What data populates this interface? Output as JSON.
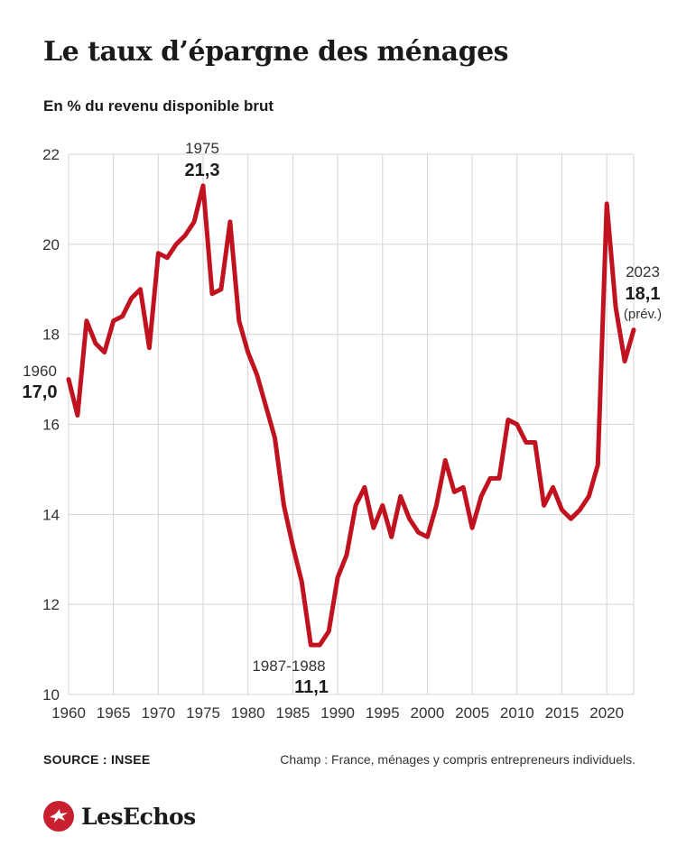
{
  "header": {
    "title": "Le taux d’épargne des ménages",
    "subtitle": "En % du revenu disponible brut"
  },
  "footer": {
    "source": "SOURCE : INSEE",
    "note": "Champ : France, ménages y compris entrepreneurs individuels.",
    "logo_text": "LesEchos",
    "logo_icon": "les-echos-bird-icon"
  },
  "colors": {
    "line": "#c0121f",
    "grid": "#d4d4d4",
    "brand": "#c8202f"
  },
  "chart_data": {
    "type": "line",
    "title": "Le taux d’épargne des ménages",
    "ylabel": "En % du revenu disponible brut",
    "xlim": [
      1960,
      2023
    ],
    "ylim": [
      10,
      22
    ],
    "grid": true,
    "x_ticks": [
      1960,
      1965,
      1970,
      1975,
      1980,
      1985,
      1990,
      1995,
      2000,
      2005,
      2010,
      2015,
      2020
    ],
    "y_ticks": [
      10,
      12,
      14,
      16,
      18,
      20,
      22
    ],
    "series": [
      {
        "x": [
          1960,
          1961,
          1962,
          1963,
          1964,
          1965,
          1966,
          1967,
          1968,
          1969,
          1970,
          1971,
          1972,
          1973,
          1974,
          1975,
          1976,
          1977,
          1978,
          1979,
          1980,
          1981,
          1982,
          1983,
          1984,
          1985,
          1986,
          1987,
          1988,
          1989,
          1990,
          1991,
          1992,
          1993,
          1994,
          1995,
          1996,
          1997,
          1998,
          1999,
          2000,
          2001,
          2002,
          2003,
          2004,
          2005,
          2006,
          2007,
          2008,
          2009,
          2010,
          2011,
          2012,
          2013,
          2014,
          2015,
          2016,
          2017,
          2018,
          2019,
          2020,
          2021,
          2022,
          2023
        ],
        "values": [
          17.0,
          16.2,
          18.3,
          17.8,
          17.6,
          18.3,
          18.4,
          18.8,
          19.0,
          17.7,
          19.8,
          19.7,
          20.0,
          20.2,
          20.5,
          21.3,
          18.9,
          19.0,
          20.5,
          18.3,
          17.6,
          17.1,
          16.4,
          15.7,
          14.2,
          13.3,
          12.5,
          11.1,
          11.1,
          11.4,
          12.6,
          13.1,
          14.2,
          14.6,
          13.7,
          14.2,
          13.5,
          14.4,
          13.9,
          13.6,
          13.5,
          14.2,
          15.2,
          14.5,
          14.6,
          13.7,
          14.4,
          14.8,
          14.8,
          16.1,
          16.0,
          15.6,
          15.6,
          14.2,
          14.6,
          14.1,
          13.9,
          14.1,
          14.4,
          15.1,
          20.9,
          18.6,
          17.4,
          18.1
        ]
      }
    ],
    "annotations": [
      {
        "year_label": "1960",
        "value_label": "17,0",
        "x": 1960,
        "y": 17.0
      },
      {
        "year_label": "1975",
        "value_label": "21,3",
        "x": 1975,
        "y": 21.3
      },
      {
        "year_label": "1987-1988",
        "value_label": "11,1",
        "x": 1987.5,
        "y": 11.1
      },
      {
        "year_label": "2023",
        "value_label": "18,1",
        "extra_label": "(prév.)",
        "x": 2023,
        "y": 18.1
      }
    ]
  }
}
